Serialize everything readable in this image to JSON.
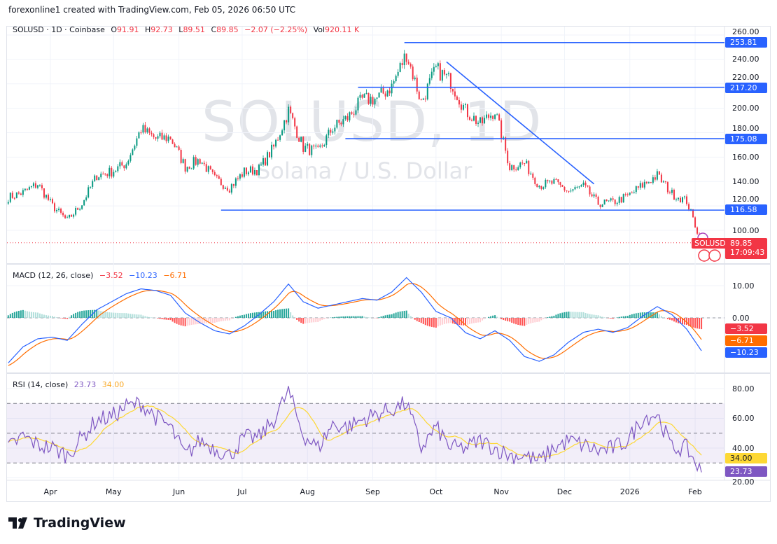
{
  "credit": "forexonline1 created with TradingView.com, Feb 05, 2026 06:50 UTC",
  "header": {
    "symbol": "SOLUSD · 1D · Coinbase",
    "o_label": "O",
    "o": "91.91",
    "h_label": "H",
    "h": "92.73",
    "l_label": "L",
    "l": "89.51",
    "c_label": "C",
    "c": "89.85",
    "change": "−2.07 (−2.25%)",
    "vol_label": "Vol",
    "vol": "920.11 K"
  },
  "watermark": {
    "title": "SOLUSD, 1D",
    "subtitle": "Solana / U.S. Dollar"
  },
  "colors": {
    "up": "#089981",
    "down": "#f23645",
    "level_line": "#2962ff",
    "macd": "#2962ff",
    "signal": "#ff6d00",
    "rsi": "#7e57c2",
    "rsi_ma": "#fdd835",
    "hist_up": "#26a69a",
    "hist_up_light": "#b2dfdb",
    "hist_down": "#ff5252",
    "hist_down_light": "#ffcdd2"
  },
  "chart_data": [
    {
      "type": "candlestick",
      "title": "SOLUSD · 1D · Coinbase",
      "ylim": [
        80,
        265
      ],
      "yticks": [
        "260.00",
        "240.00",
        "220.00",
        "200.00",
        "180.00",
        "160.00",
        "140.00",
        "120.00",
        "100.00"
      ],
      "xticks": [
        {
          "label": "Apr",
          "date": "2025-04-01"
        },
        {
          "label": "May",
          "date": "2025-05-01"
        },
        {
          "label": "Jun",
          "date": "2025-06-01"
        },
        {
          "label": "Jul",
          "date": "2025-07-01"
        },
        {
          "label": "Aug",
          "date": "2025-08-01"
        },
        {
          "label": "Sep",
          "date": "2025-09-01"
        },
        {
          "label": "Oct",
          "date": "2025-10-01"
        },
        {
          "label": "Nov",
          "date": "2025-11-01"
        },
        {
          "label": "Dec",
          "date": "2025-12-01"
        },
        {
          "label": "2026",
          "date": "2026-01-01"
        },
        {
          "label": "Feb",
          "date": "2026-02-01"
        }
      ],
      "dates": [
        "2025-03-12",
        "2025-03-19",
        "2025-03-26",
        "2025-04-02",
        "2025-04-09",
        "2025-04-16",
        "2025-04-23",
        "2025-04-30",
        "2025-05-07",
        "2025-05-14",
        "2025-05-21",
        "2025-05-28",
        "2025-06-04",
        "2025-06-11",
        "2025-06-18",
        "2025-06-25",
        "2025-07-02",
        "2025-07-09",
        "2025-07-16",
        "2025-07-23",
        "2025-07-30",
        "2025-08-06",
        "2025-08-13",
        "2025-08-20",
        "2025-08-27",
        "2025-09-03",
        "2025-09-10",
        "2025-09-17",
        "2025-09-24",
        "2025-10-01",
        "2025-10-08",
        "2025-10-15",
        "2025-10-22",
        "2025-10-29",
        "2025-11-05",
        "2025-11-12",
        "2025-11-19",
        "2025-11-26",
        "2025-12-03",
        "2025-12-10",
        "2025-12-17",
        "2025-12-24",
        "2025-12-31",
        "2026-01-07",
        "2026-01-14",
        "2026-01-21",
        "2026-01-28",
        "2026-02-04"
      ],
      "close": [
        127,
        131,
        138,
        120,
        108,
        122,
        145,
        148,
        155,
        183,
        175,
        176,
        152,
        158,
        142,
        135,
        148,
        150,
        168,
        198,
        168,
        164,
        184,
        192,
        207,
        208,
        218,
        245,
        205,
        232,
        222,
        198,
        187,
        198,
        152,
        155,
        137,
        139,
        132,
        136,
        122,
        123,
        128,
        137,
        145,
        130,
        124,
        89.85
      ],
      "levels": [
        {
          "value": 253.81,
          "label": "253.81",
          "from": "2025-09-16"
        },
        {
          "value": 217.2,
          "label": "217.20",
          "from": "2025-08-25"
        },
        {
          "value": 175.08,
          "label": "175.08",
          "from": "2025-08-19"
        },
        {
          "value": 116.58,
          "label": "116.58",
          "from": "2025-06-21"
        }
      ],
      "trendline": {
        "from": {
          "date": "2025-10-06",
          "price": 238
        },
        "to": {
          "date": "2025-12-15",
          "price": 138
        }
      },
      "last": {
        "symbol": "SOLUSD",
        "price": "89.85",
        "countdown": "17:09:43"
      }
    },
    {
      "type": "line",
      "title": "MACD (12, 26, close)",
      "ylim": [
        -17,
        15
      ],
      "yticks": [
        "10.00",
        "0.00"
      ],
      "macd": [
        -14,
        -9,
        -6.5,
        -6,
        -7,
        -2,
        2.5,
        5,
        7.5,
        9,
        8.5,
        7,
        1.5,
        -1.5,
        -4,
        -5,
        -2.5,
        1,
        5,
        10.5,
        5,
        3,
        4,
        5,
        6,
        5.5,
        8,
        12.5,
        8,
        2,
        0,
        -4.6,
        -6.5,
        -4,
        -7,
        -12,
        -13.5,
        -11.5,
        -7.5,
        -4.5,
        -3.5,
        -4.5,
        -3,
        0.5,
        3.5,
        1,
        -3.5,
        -10.23
      ],
      "values": {
        "histogram": "−3.52",
        "macd": "−10.23",
        "signal": "−6.71"
      }
    },
    {
      "type": "line",
      "title": "RSI (14, close)",
      "ylim": [
        15,
        88
      ],
      "yticks": [
        "80.00",
        "60.00",
        "40.00",
        "20.00"
      ],
      "bands": [
        70,
        50,
        30
      ],
      "rsi": [
        40,
        48,
        42,
        40,
        35,
        47,
        59,
        61,
        68,
        70,
        61,
        54,
        35,
        45,
        40,
        35,
        47,
        47,
        59,
        78,
        49,
        40,
        56,
        54,
        59,
        63,
        66,
        70,
        40,
        54,
        40,
        40,
        45,
        40,
        35,
        35,
        31,
        40,
        45,
        42,
        38,
        40,
        45,
        60,
        63,
        40,
        40,
        23.73
      ],
      "values": {
        "rsi": "23.73",
        "rsi_ma": "34.00"
      }
    }
  ],
  "logo": "TradingView"
}
